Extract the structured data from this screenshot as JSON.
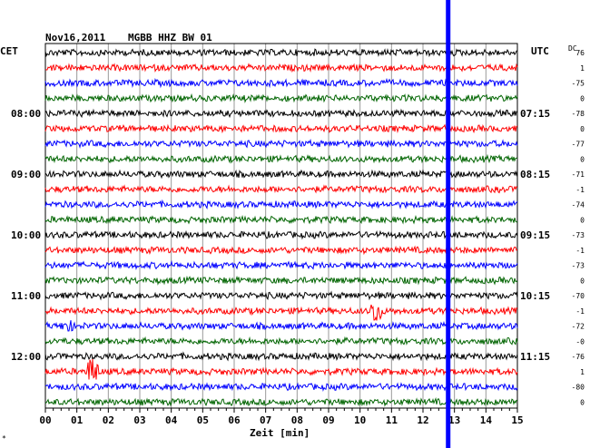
{
  "header": {
    "date": "Nov16,2011",
    "station": "MGBB HHZ BW 01",
    "left_zone": "CET",
    "right_zone": "UTC",
    "dc_label": "DC"
  },
  "footer": {
    "xlabel": "Zeit [min]",
    "corner_mark": "*"
  },
  "chart_data": {
    "type": "line",
    "title": "Nov16,2011   MGBB HHZ BW 01",
    "xlabel": "Zeit [min]",
    "xlim": [
      0,
      15
    ],
    "x_ticks": [
      "00",
      "01",
      "02",
      "03",
      "04",
      "05",
      "06",
      "07",
      "08",
      "09",
      "10",
      "11",
      "12",
      "13",
      "14",
      "15"
    ],
    "grid": true,
    "trace_colors": [
      "#000000",
      "#ff0000",
      "#0000ff",
      "#006400"
    ],
    "marker_color": "#0000ff",
    "marker_minute": 12.8,
    "left_time_labels": [
      {
        "row": 4,
        "label": "08:00"
      },
      {
        "row": 8,
        "label": "09:00"
      },
      {
        "row": 12,
        "label": "10:00"
      },
      {
        "row": 16,
        "label": "11:00"
      },
      {
        "row": 20,
        "label": "12:00"
      }
    ],
    "right_time_labels": [
      {
        "row": 0,
        "label": "UTC"
      },
      {
        "row": 4,
        "label": "07:15"
      },
      {
        "row": 8,
        "label": "08:15"
      },
      {
        "row": 12,
        "label": "09:15"
      },
      {
        "row": 16,
        "label": "10:15"
      },
      {
        "row": 20,
        "label": "11:15"
      }
    ],
    "dc_offsets": [
      "76",
      "1",
      "-75",
      "0",
      "-78",
      "0",
      "-77",
      "0",
      "-71",
      "-1",
      "-74",
      "0",
      "-73",
      "-1",
      "-73",
      "0",
      "-70",
      "-1",
      "-72",
      "-0",
      "-76",
      "1",
      "-80",
      "0"
    ],
    "events": [
      {
        "row": 17,
        "minute": 10.5,
        "amplitude": 2.5
      },
      {
        "row": 18,
        "minute": 0.7,
        "amplitude": 1.0
      },
      {
        "row": 21,
        "minute": 1.5,
        "amplitude": 3.0
      }
    ]
  }
}
